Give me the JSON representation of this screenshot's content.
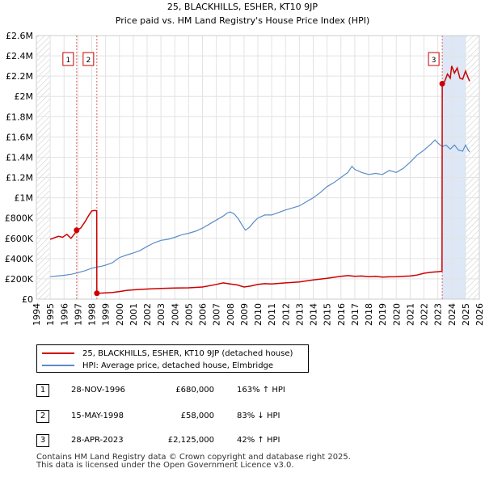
{
  "chart_data": {
    "type": "line",
    "title": "25, BLACKHILLS, ESHER, KT10 9JP",
    "subtitle": "Price paid vs. HM Land Registry's House Price Index (HPI)",
    "xlim": [
      1994,
      2026
    ],
    "ylim": [
      0,
      2600000
    ],
    "x_ticks": [
      "1994",
      "1995",
      "1996",
      "1997",
      "1998",
      "1999",
      "2000",
      "2001",
      "2002",
      "2003",
      "2004",
      "2005",
      "2006",
      "2007",
      "2008",
      "2009",
      "2010",
      "2011",
      "2012",
      "2013",
      "2014",
      "2015",
      "2016",
      "2017",
      "2018",
      "2019",
      "2020",
      "2021",
      "2022",
      "2023",
      "2024",
      "2025",
      "2026"
    ],
    "y_ticks": [
      {
        "value": 0,
        "label": "£0"
      },
      {
        "value": 200000,
        "label": "£200K"
      },
      {
        "value": 400000,
        "label": "£400K"
      },
      {
        "value": 600000,
        "label": "£600K"
      },
      {
        "value": 800000,
        "label": "£800K"
      },
      {
        "value": 1000000,
        "label": "£1M"
      },
      {
        "value": 1200000,
        "label": "£1.2M"
      },
      {
        "value": 1400000,
        "label": "£1.4M"
      },
      {
        "value": 1600000,
        "label": "£1.6M"
      },
      {
        "value": 1800000,
        "label": "£1.8M"
      },
      {
        "value": 2000000,
        "label": "£2M"
      },
      {
        "value": 2200000,
        "label": "£2.2M"
      },
      {
        "value": 2400000,
        "label": "£2.4M"
      },
      {
        "value": 2600000,
        "label": "£2.6M"
      }
    ],
    "series": [
      {
        "name": "25, BLACKHILLS, ESHER, KT10 9JP (detached house)",
        "color": "#cc0000",
        "points": [
          [
            1995.0,
            590000
          ],
          [
            1995.3,
            605000
          ],
          [
            1995.6,
            620000
          ],
          [
            1995.9,
            610000
          ],
          [
            1996.2,
            640000
          ],
          [
            1996.5,
            600000
          ],
          [
            1996.8,
            650000
          ],
          [
            1996.91,
            680000
          ],
          [
            1997.2,
            700000
          ],
          [
            1997.5,
            760000
          ],
          [
            1997.8,
            830000
          ],
          [
            1998.0,
            870000
          ],
          [
            1998.2,
            875000
          ],
          [
            1998.36,
            870000
          ],
          [
            1998.37,
            58000
          ],
          [
            1998.7,
            60000
          ],
          [
            1999.0,
            62000
          ],
          [
            1999.5,
            66000
          ],
          [
            2000.0,
            75000
          ],
          [
            2000.5,
            85000
          ],
          [
            2001.0,
            92000
          ],
          [
            2002.0,
            100000
          ],
          [
            2003.0,
            105000
          ],
          [
            2004.0,
            110000
          ],
          [
            2005.0,
            112000
          ],
          [
            2006.0,
            120000
          ],
          [
            2007.0,
            145000
          ],
          [
            2007.5,
            160000
          ],
          [
            2008.0,
            150000
          ],
          [
            2008.5,
            140000
          ],
          [
            2009.0,
            120000
          ],
          [
            2009.5,
            130000
          ],
          [
            2010.0,
            145000
          ],
          [
            2010.5,
            152000
          ],
          [
            2011.0,
            150000
          ],
          [
            2012.0,
            160000
          ],
          [
            2013.0,
            170000
          ],
          [
            2014.0,
            190000
          ],
          [
            2015.0,
            205000
          ],
          [
            2016.0,
            225000
          ],
          [
            2016.5,
            232000
          ],
          [
            2017.0,
            225000
          ],
          [
            2017.5,
            228000
          ],
          [
            2018.0,
            222000
          ],
          [
            2018.5,
            225000
          ],
          [
            2019.0,
            218000
          ],
          [
            2019.5,
            220000
          ],
          [
            2020.0,
            222000
          ],
          [
            2020.5,
            225000
          ],
          [
            2021.0,
            228000
          ],
          [
            2021.5,
            238000
          ],
          [
            2022.0,
            255000
          ],
          [
            2022.5,
            265000
          ],
          [
            2023.0,
            270000
          ],
          [
            2023.3,
            275000
          ],
          [
            2023.32,
            2125000
          ],
          [
            2023.5,
            2150000
          ],
          [
            2023.7,
            2220000
          ],
          [
            2023.9,
            2180000
          ],
          [
            2024.0,
            2300000
          ],
          [
            2024.2,
            2230000
          ],
          [
            2024.4,
            2280000
          ],
          [
            2024.6,
            2180000
          ],
          [
            2024.8,
            2170000
          ],
          [
            2025.0,
            2250000
          ],
          [
            2025.2,
            2180000
          ],
          [
            2025.3,
            2150000
          ]
        ]
      },
      {
        "name": "HPI: Average price, detached house, Elmbridge",
        "color": "#5b8cc8",
        "points": [
          [
            1995.0,
            222000
          ],
          [
            1995.5,
            228000
          ],
          [
            1996.0,
            235000
          ],
          [
            1996.5,
            245000
          ],
          [
            1996.91,
            258000
          ],
          [
            1997.5,
            280000
          ],
          [
            1998.0,
            305000
          ],
          [
            1998.37,
            316000
          ],
          [
            1998.7,
            325000
          ],
          [
            1999.0,
            335000
          ],
          [
            1999.5,
            360000
          ],
          [
            2000.0,
            410000
          ],
          [
            2000.5,
            435000
          ],
          [
            2001.0,
            455000
          ],
          [
            2001.5,
            480000
          ],
          [
            2002.0,
            520000
          ],
          [
            2002.5,
            555000
          ],
          [
            2003.0,
            580000
          ],
          [
            2003.5,
            590000
          ],
          [
            2004.0,
            610000
          ],
          [
            2004.5,
            635000
          ],
          [
            2005.0,
            650000
          ],
          [
            2005.5,
            670000
          ],
          [
            2006.0,
            700000
          ],
          [
            2006.5,
            740000
          ],
          [
            2007.0,
            780000
          ],
          [
            2007.5,
            820000
          ],
          [
            2007.8,
            850000
          ],
          [
            2008.0,
            860000
          ],
          [
            2008.3,
            840000
          ],
          [
            2008.6,
            790000
          ],
          [
            2008.9,
            720000
          ],
          [
            2009.1,
            680000
          ],
          [
            2009.4,
            710000
          ],
          [
            2009.7,
            760000
          ],
          [
            2010.0,
            800000
          ],
          [
            2010.5,
            830000
          ],
          [
            2011.0,
            830000
          ],
          [
            2011.5,
            855000
          ],
          [
            2012.0,
            880000
          ],
          [
            2012.5,
            900000
          ],
          [
            2013.0,
            920000
          ],
          [
            2013.5,
            960000
          ],
          [
            2014.0,
            1000000
          ],
          [
            2014.5,
            1050000
          ],
          [
            2015.0,
            1110000
          ],
          [
            2015.5,
            1150000
          ],
          [
            2016.0,
            1200000
          ],
          [
            2016.5,
            1250000
          ],
          [
            2016.8,
            1310000
          ],
          [
            2017.0,
            1280000
          ],
          [
            2017.5,
            1250000
          ],
          [
            2018.0,
            1230000
          ],
          [
            2018.5,
            1240000
          ],
          [
            2019.0,
            1230000
          ],
          [
            2019.5,
            1270000
          ],
          [
            2020.0,
            1250000
          ],
          [
            2020.5,
            1290000
          ],
          [
            2021.0,
            1350000
          ],
          [
            2021.5,
            1420000
          ],
          [
            2022.0,
            1470000
          ],
          [
            2022.5,
            1530000
          ],
          [
            2022.8,
            1570000
          ],
          [
            2023.0,
            1540000
          ],
          [
            2023.32,
            1505000
          ],
          [
            2023.6,
            1520000
          ],
          [
            2023.9,
            1480000
          ],
          [
            2024.2,
            1520000
          ],
          [
            2024.5,
            1470000
          ],
          [
            2024.8,
            1460000
          ],
          [
            2025.0,
            1520000
          ],
          [
            2025.2,
            1470000
          ],
          [
            2025.3,
            1450000
          ]
        ]
      }
    ],
    "sales": [
      {
        "num": "1",
        "x": 1996.91,
        "y": 680000
      },
      {
        "num": "2",
        "x": 1998.37,
        "y": 58000
      },
      {
        "num": "3",
        "x": 2023.32,
        "y": 2125000
      }
    ],
    "shaded_regions": [
      [
        2023.32,
        2025.0
      ]
    ],
    "hatched_regions": [
      [
        1994.0,
        1995.0
      ],
      [
        2025.0,
        2026.0
      ]
    ]
  },
  "legend": {
    "items": [
      {
        "label": "25, BLACKHILLS, ESHER, KT10 9JP (detached house)",
        "color": "#cc0000"
      },
      {
        "label": "HPI: Average price, detached house, Elmbridge",
        "color": "#5b8cc8"
      }
    ]
  },
  "transactions": [
    {
      "num": "1",
      "date": "28-NOV-1996",
      "price": "£680,000",
      "hpi": "163% ↑ HPI"
    },
    {
      "num": "2",
      "date": "15-MAY-1998",
      "price": "£58,000",
      "hpi": "83% ↓ HPI"
    },
    {
      "num": "3",
      "date": "28-APR-2023",
      "price": "£2,125,000",
      "hpi": "42% ↑ HPI"
    }
  ],
  "footer": {
    "line1": "Contains HM Land Registry data © Crown copyright and database right 2025.",
    "line2": "This data is licensed under the Open Government Licence v3.0."
  }
}
